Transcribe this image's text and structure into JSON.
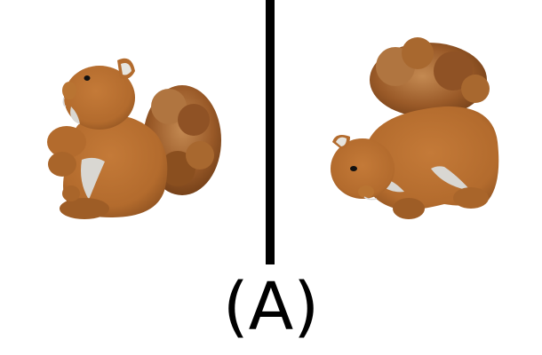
{
  "caption": "(A)",
  "panels": [
    {
      "icon": "plush-squirrel-side-view-icon"
    },
    {
      "icon": "plush-squirrel-rotated-view-icon"
    }
  ],
  "colors": {
    "background": "#ffffff",
    "divider": "#000000",
    "fur": "#b36b2d",
    "fur_dark": "#8a4f1f",
    "tail": "#9a5a28",
    "belly": "#d9d7d2"
  }
}
